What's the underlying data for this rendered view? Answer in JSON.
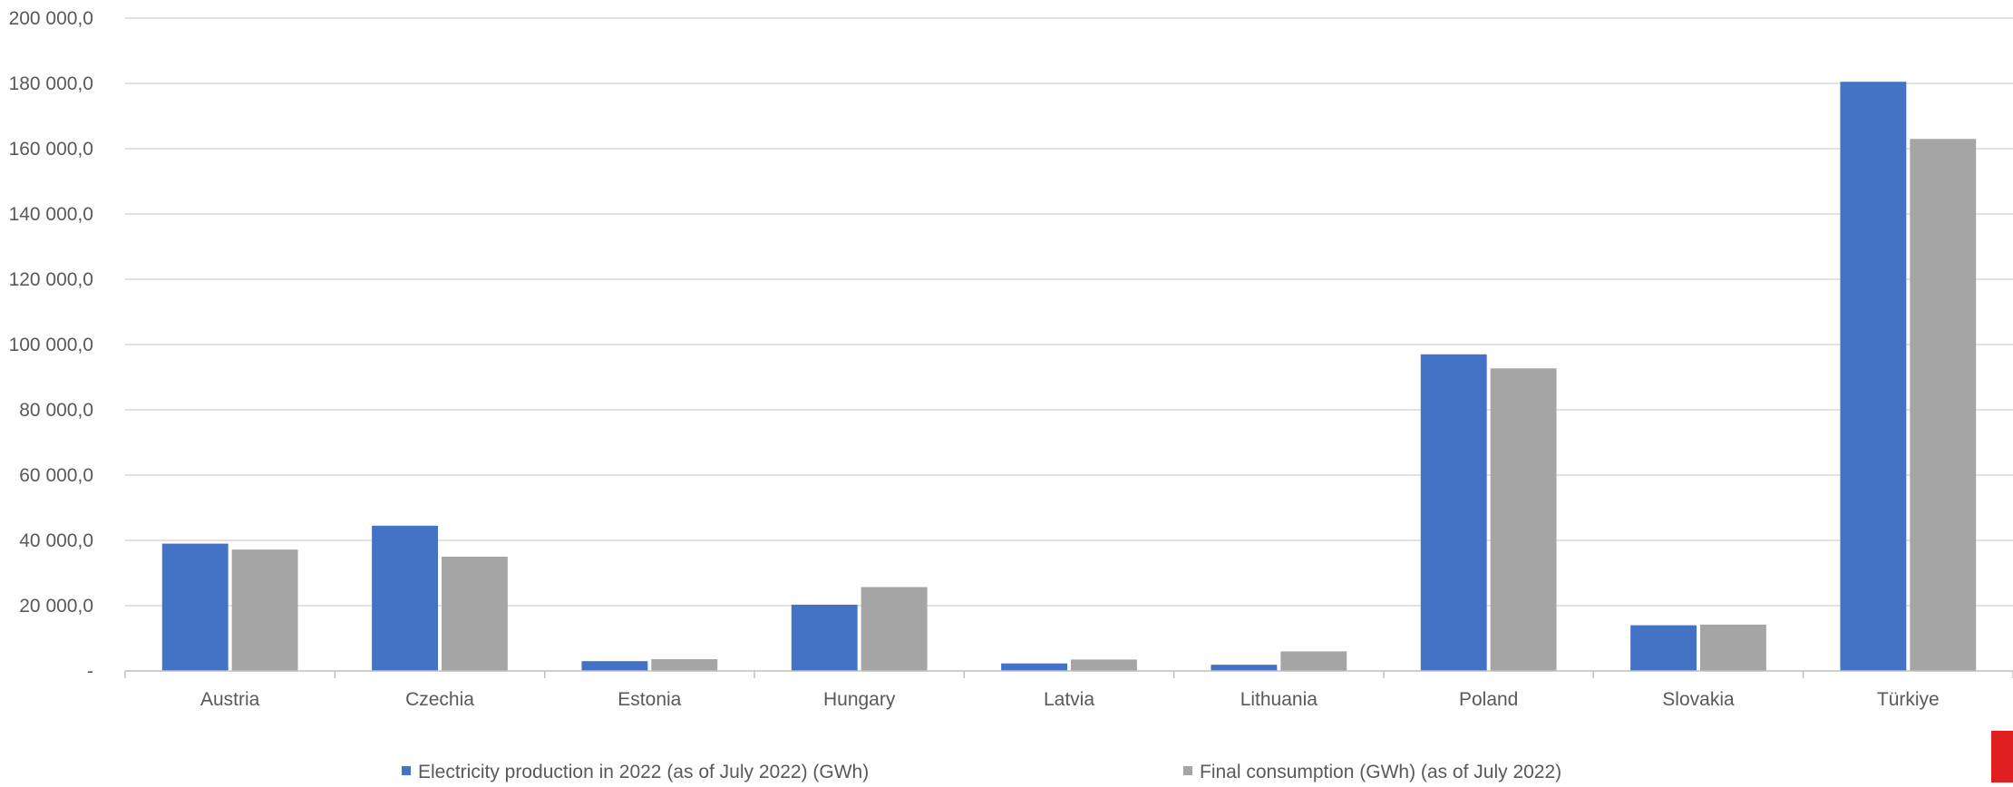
{
  "chart_data": {
    "type": "bar",
    "categories": [
      "Austria",
      "Czechia",
      "Estonia",
      "Hungary",
      "Latvia",
      "Lithuania",
      "Poland",
      "Slovakia",
      "Türkiye"
    ],
    "series": [
      {
        "name": "Electricity production in 2022 (as of July 2022) (GWh)",
        "color": "#4472c4",
        "values": [
          39000,
          44500,
          3000,
          20300,
          2300,
          1900,
          97000,
          14000,
          180500
        ]
      },
      {
        "name": "Final consumption (GWh) (as of July 2022)",
        "color": "#a5a5a5",
        "values": [
          37200,
          35000,
          3600,
          25700,
          3500,
          6000,
          92700,
          14200,
          163000
        ]
      }
    ],
    "ylim": [
      0,
      200000
    ],
    "yticks": [
      {
        "value": 0,
        "label": "-"
      },
      {
        "value": 20000,
        "label": "20 000,0"
      },
      {
        "value": 40000,
        "label": "40 000,0"
      },
      {
        "value": 60000,
        "label": "60 000,0"
      },
      {
        "value": 80000,
        "label": "80 000,0"
      },
      {
        "value": 100000,
        "label": "100 000,0"
      },
      {
        "value": 120000,
        "label": "120 000,0"
      },
      {
        "value": 140000,
        "label": "140 000,0"
      },
      {
        "value": 160000,
        "label": "160 000,0"
      },
      {
        "value": 180000,
        "label": "180 000,0"
      },
      {
        "value": 200000,
        "label": "200 000,0"
      }
    ],
    "grid": true,
    "legend_position": "bottom",
    "title": "",
    "xlabel": "",
    "ylabel": ""
  },
  "accent_marker_color": "#e02020"
}
